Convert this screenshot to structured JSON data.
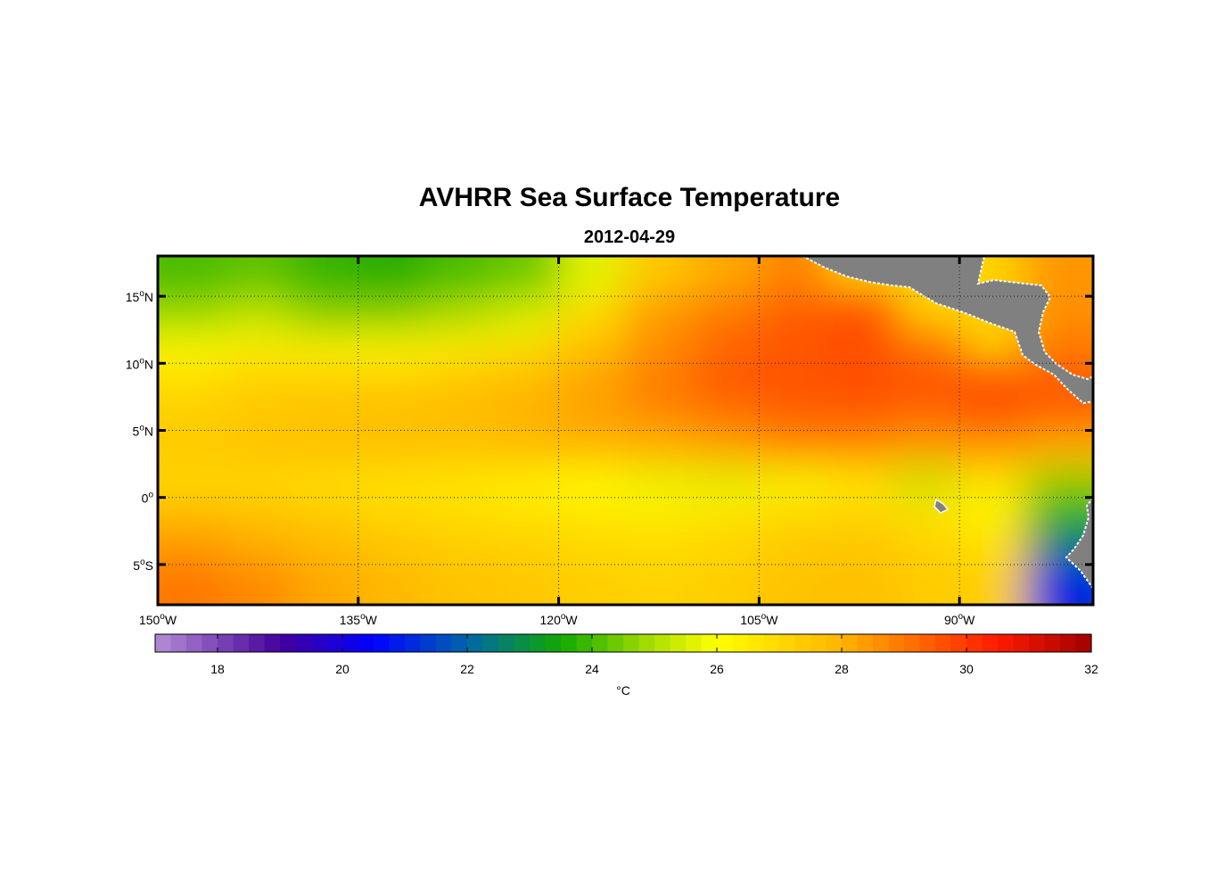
{
  "title": "AVHRR Sea Surface Temperature",
  "subtitle": "2012-04-29",
  "map": {
    "lon_range": [
      -150,
      -80
    ],
    "lat_range": [
      -8,
      18
    ],
    "lon_ticks": [
      {
        "value": -150,
        "num": "150",
        "dir": "W"
      },
      {
        "value": -135,
        "num": "135",
        "dir": "W"
      },
      {
        "value": -120,
        "num": "120",
        "dir": "W"
      },
      {
        "value": -105,
        "num": "105",
        "dir": "W"
      },
      {
        "value": -90,
        "num": "90",
        "dir": "W"
      }
    ],
    "lat_ticks": [
      {
        "value": 15,
        "num": "15",
        "dir": "N"
      },
      {
        "value": 10,
        "num": "10",
        "dir": "N"
      },
      {
        "value": 5,
        "num": "5",
        "dir": "N"
      },
      {
        "value": 0,
        "num": "0",
        "dir": ""
      },
      {
        "value": -5,
        "num": "5",
        "dir": "S"
      }
    ],
    "degree_symbol": "o",
    "land_color": "#808080",
    "gridlines": "dotted"
  },
  "colorbar": {
    "min": 17,
    "max": 32,
    "ticks": [
      "18",
      "20",
      "22",
      "24",
      "26",
      "28",
      "30",
      "32"
    ],
    "unit_label": "°C",
    "stops": [
      {
        "v": 17,
        "c": "#b48fd6"
      },
      {
        "v": 19,
        "c": "#44009a"
      },
      {
        "v": 20.5,
        "c": "#0000ff"
      },
      {
        "v": 22,
        "c": "#0066aa"
      },
      {
        "v": 23.5,
        "c": "#11a800"
      },
      {
        "v": 25,
        "c": "#aee000"
      },
      {
        "v": 26,
        "c": "#ffff00"
      },
      {
        "v": 28,
        "c": "#ffb400"
      },
      {
        "v": 30.5,
        "c": "#ff1a00"
      },
      {
        "v": 32,
        "c": "#a00000"
      }
    ]
  },
  "chart_data": {
    "type": "heatmap",
    "title": "AVHRR Sea Surface Temperature",
    "subtitle": "2012-04-29",
    "variable": "sea surface temperature",
    "unit": "°C",
    "xlim": [
      -150,
      -80
    ],
    "ylim": [
      -8,
      18
    ],
    "x": [
      -147.5,
      -142.5,
      -137.5,
      -132.5,
      -127.5,
      -122.5,
      -117.5,
      -112.5,
      -107.5,
      -102.5,
      -97.5,
      -92.5,
      -87.5,
      -82.5
    ],
    "y": [
      16.5,
      13.5,
      11,
      8.5,
      6,
      3.5,
      1,
      -1,
      -3.5,
      -6
    ],
    "z": [
      [
        24.0,
        24.2,
        23.8,
        23.6,
        24.0,
        24.3,
        25.6,
        27.5,
        28.2,
        28.8,
        null,
        null,
        null,
        28.5
      ],
      [
        24.8,
        25.2,
        24.6,
        24.6,
        25.0,
        25.5,
        27.0,
        28.5,
        29.0,
        29.5,
        29.8,
        null,
        null,
        28.6
      ],
      [
        26.2,
        26.5,
        26.4,
        26.3,
        26.6,
        27.0,
        27.8,
        28.6,
        29.3,
        29.5,
        29.6,
        29.2,
        null,
        29.0
      ],
      [
        27.0,
        27.3,
        27.4,
        27.4,
        27.6,
        27.9,
        28.3,
        29.0,
        29.5,
        29.6,
        29.7,
        29.6,
        29.8,
        29.5
      ],
      [
        27.3,
        27.5,
        27.6,
        27.7,
        27.8,
        28.0,
        28.3,
        28.6,
        29.0,
        29.3,
        29.4,
        29.2,
        29.5,
        29.3
      ],
      [
        27.5,
        27.6,
        27.7,
        27.7,
        27.6,
        27.8,
        27.9,
        28.0,
        28.2,
        28.6,
        28.6,
        28.3,
        28.4,
        28.0
      ],
      [
        27.0,
        27.0,
        26.8,
        26.7,
        26.6,
        26.3,
        26.0,
        25.7,
        25.6,
        25.9,
        26.5,
        25.2,
        26.6,
        24.6
      ],
      [
        27.8,
        27.6,
        27.4,
        27.1,
        26.9,
        26.8,
        26.7,
        26.5,
        26.7,
        27.1,
        27.2,
        26.8,
        26.3,
        23.8
      ],
      [
        28.4,
        28.1,
        27.8,
        27.5,
        27.3,
        27.2,
        27.0,
        26.9,
        27.1,
        27.4,
        27.5,
        27.2,
        26.8,
        22.5
      ],
      [
        29.0,
        28.7,
        28.2,
        27.9,
        27.6,
        27.5,
        27.3,
        27.2,
        27.3,
        27.6,
        27.7,
        27.4,
        27.3,
        21.0
      ]
    ]
  }
}
